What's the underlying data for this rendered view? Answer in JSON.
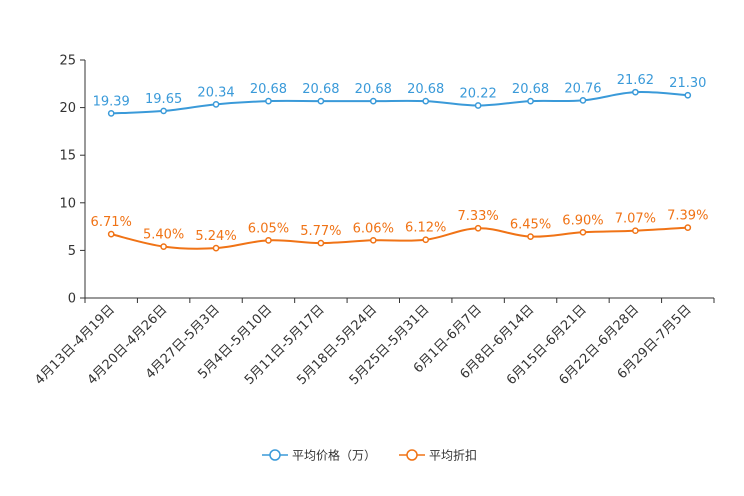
{
  "chart_data": {
    "type": "line",
    "title": "",
    "xlabel": "",
    "ylabel": "",
    "ylim": [
      0,
      25
    ],
    "yticks": [
      0,
      5,
      10,
      15,
      20,
      25
    ],
    "grid": false,
    "legend_position": "bottom-center",
    "categories": [
      "4月13日-4月19日",
      "4月20日-4月26日",
      "4月27日-5月3日",
      "5月4日-5月10日",
      "5月11日-5月17日",
      "5月18日-5月24日",
      "5月25日-5月31日",
      "6月1日-6月7日",
      "6月8日-6月14日",
      "6月15日-6月21日",
      "6月22日-6月28日",
      "6月29日-7月5日"
    ],
    "series": [
      {
        "name": "平均价格（万）",
        "color": "#3a9ad9",
        "values": [
          19.39,
          19.65,
          20.34,
          20.68,
          20.68,
          20.68,
          20.68,
          20.22,
          20.68,
          20.76,
          21.62,
          21.3
        ],
        "labels": [
          "19.39",
          "19.65",
          "20.34",
          "20.68",
          "20.68",
          "20.68",
          "20.68",
          "20.22",
          "20.68",
          "20.76",
          "21.62",
          "21.30"
        ]
      },
      {
        "name": "平均折扣",
        "color": "#f07316",
        "values": [
          6.71,
          5.4,
          5.24,
          6.05,
          5.77,
          6.06,
          6.12,
          7.33,
          6.45,
          6.9,
          7.07,
          7.39
        ],
        "labels": [
          "6.71%",
          "5.40%",
          "5.24%",
          "6.05%",
          "5.77%",
          "6.06%",
          "6.12%",
          "7.33%",
          "6.45%",
          "6.90%",
          "7.07%",
          "7.39%"
        ]
      }
    ]
  }
}
